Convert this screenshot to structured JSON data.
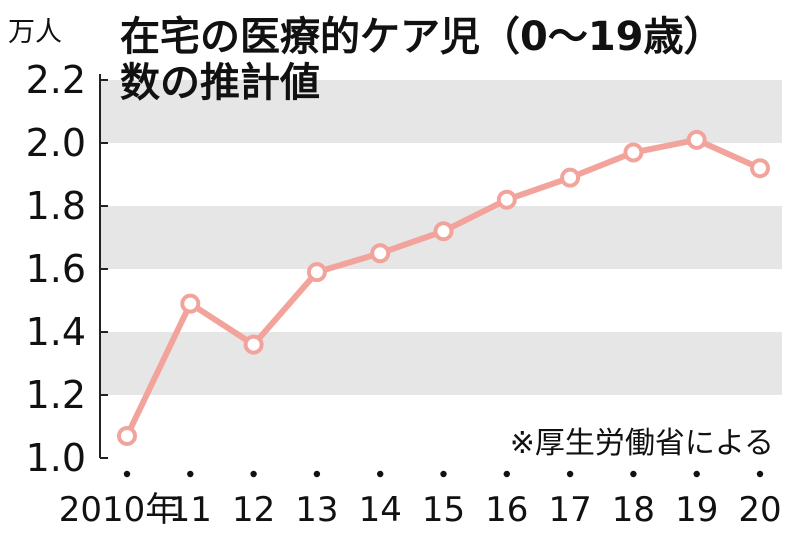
{
  "chart_data": {
    "type": "line",
    "title_lines": [
      "在宅の医療的ケア児（0～19歳）",
      "数の推計値"
    ],
    "unit_label": "万人",
    "source": "※厚生労働省による",
    "categories": [
      "2010年",
      "11",
      "12",
      "13",
      "14",
      "15",
      "16",
      "17",
      "18",
      "19",
      "20"
    ],
    "values": [
      1.07,
      1.49,
      1.36,
      1.59,
      1.65,
      1.72,
      1.82,
      1.89,
      1.97,
      2.01,
      1.92
    ],
    "y_ticks": [
      "1.0",
      "1.2",
      "1.4",
      "1.6",
      "1.8",
      "2.0",
      "2.2"
    ],
    "ylim": [
      1.0,
      2.2
    ],
    "grid": "alternating horizontal bands",
    "colors": {
      "line": "#f2a49c",
      "band": "#e6e6e6",
      "marker_fill": "#ffffff"
    }
  }
}
